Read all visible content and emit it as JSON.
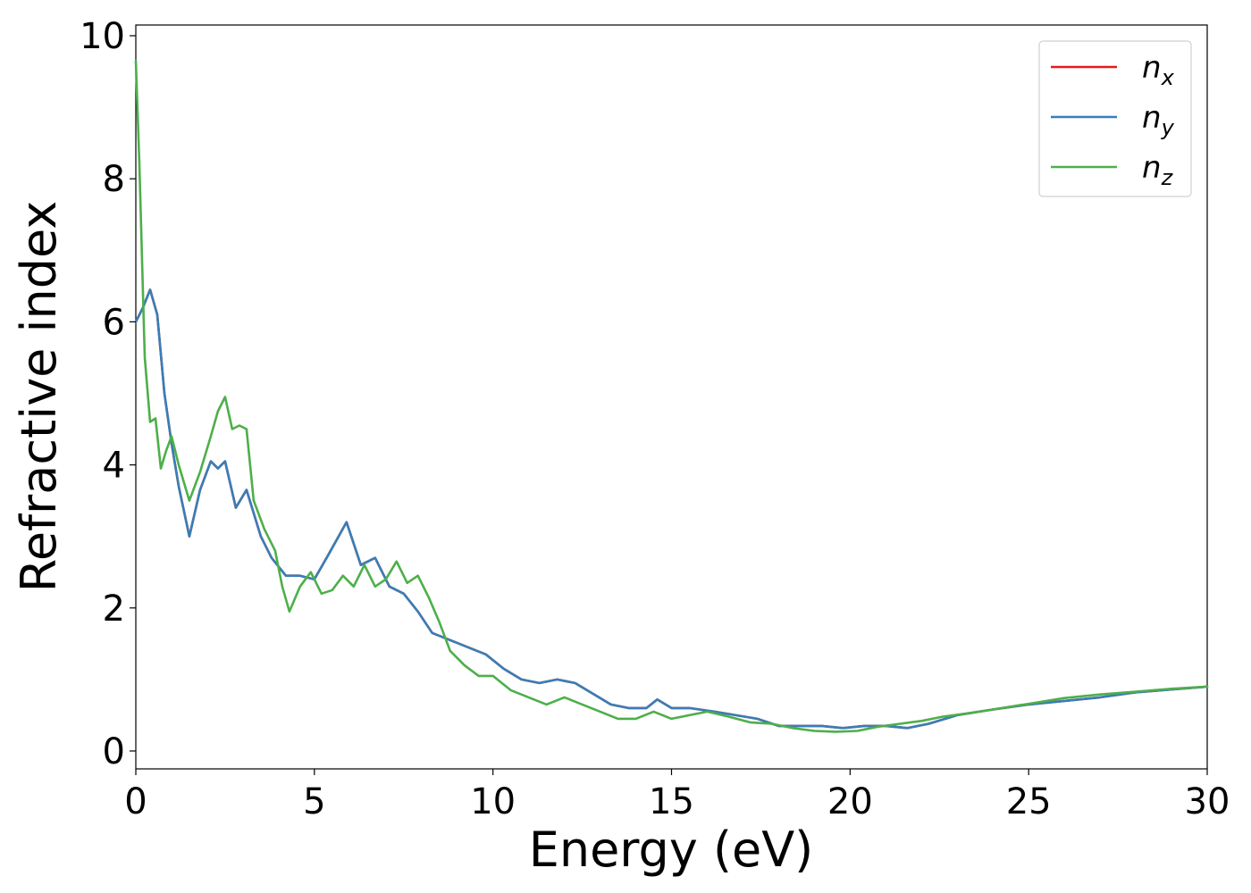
{
  "chart_data": {
    "type": "line",
    "xlabel": "Energy (eV)",
    "ylabel": "Refractive index",
    "xlim": [
      0,
      30
    ],
    "ylim": [
      -0.25,
      10.15
    ],
    "xticks": [
      "0",
      "5",
      "10",
      "15",
      "20",
      "25",
      "30"
    ],
    "yticks": [
      "0",
      "2",
      "4",
      "6",
      "8",
      "10"
    ],
    "grid": false,
    "legend_position": "top-right",
    "series": [
      {
        "name": "n",
        "subscript": "x",
        "color": "#e41a1c",
        "x": [
          0,
          0.2,
          0.4,
          0.6,
          0.8,
          1.0,
          1.2,
          1.5,
          1.8,
          2.1,
          2.3,
          2.5,
          2.8,
          3.1,
          3.5,
          3.8,
          4.2,
          4.6,
          5.0,
          5.4,
          5.9,
          6.3,
          6.7,
          7.1,
          7.5,
          7.9,
          8.3,
          8.8,
          9.3,
          9.8,
          10.3,
          10.8,
          11.3,
          11.8,
          12.3,
          12.8,
          13.3,
          13.8,
          14.3,
          14.6,
          15.0,
          15.5,
          16.2,
          16.8,
          17.4,
          18.0,
          18.6,
          19.2,
          19.8,
          20.4,
          21.0,
          21.6,
          22.2,
          23.0,
          24.0,
          25.0,
          26.0,
          27.0,
          28.0,
          29.0,
          30.0
        ],
        "y": [
          6.0,
          6.2,
          6.45,
          6.1,
          5.0,
          4.3,
          3.7,
          3.0,
          3.65,
          4.05,
          3.95,
          4.05,
          3.4,
          3.65,
          3.0,
          2.7,
          2.45,
          2.45,
          2.4,
          2.75,
          3.2,
          2.6,
          2.7,
          2.3,
          2.2,
          1.95,
          1.65,
          1.55,
          1.45,
          1.35,
          1.15,
          1.0,
          0.95,
          1.0,
          0.95,
          0.8,
          0.65,
          0.6,
          0.6,
          0.72,
          0.6,
          0.6,
          0.55,
          0.5,
          0.45,
          0.35,
          0.35,
          0.35,
          0.32,
          0.35,
          0.35,
          0.32,
          0.38,
          0.5,
          0.58,
          0.65,
          0.7,
          0.75,
          0.82,
          0.86,
          0.9
        ]
      },
      {
        "name": "n",
        "subscript": "y",
        "color": "#377eb8",
        "x": [
          0,
          0.2,
          0.4,
          0.6,
          0.8,
          1.0,
          1.2,
          1.5,
          1.8,
          2.1,
          2.3,
          2.5,
          2.8,
          3.1,
          3.5,
          3.8,
          4.2,
          4.6,
          5.0,
          5.4,
          5.9,
          6.3,
          6.7,
          7.1,
          7.5,
          7.9,
          8.3,
          8.8,
          9.3,
          9.8,
          10.3,
          10.8,
          11.3,
          11.8,
          12.3,
          12.8,
          13.3,
          13.8,
          14.3,
          14.6,
          15.0,
          15.5,
          16.2,
          16.8,
          17.4,
          18.0,
          18.6,
          19.2,
          19.8,
          20.4,
          21.0,
          21.6,
          22.2,
          23.0,
          24.0,
          25.0,
          26.0,
          27.0,
          28.0,
          29.0,
          30.0
        ],
        "y": [
          6.0,
          6.2,
          6.45,
          6.1,
          5.0,
          4.3,
          3.7,
          3.0,
          3.65,
          4.05,
          3.95,
          4.05,
          3.4,
          3.65,
          3.0,
          2.7,
          2.45,
          2.45,
          2.4,
          2.75,
          3.2,
          2.6,
          2.7,
          2.3,
          2.2,
          1.95,
          1.65,
          1.55,
          1.45,
          1.35,
          1.15,
          1.0,
          0.95,
          1.0,
          0.95,
          0.8,
          0.65,
          0.6,
          0.6,
          0.72,
          0.6,
          0.6,
          0.55,
          0.5,
          0.45,
          0.35,
          0.35,
          0.35,
          0.32,
          0.35,
          0.35,
          0.32,
          0.38,
          0.5,
          0.58,
          0.65,
          0.7,
          0.75,
          0.82,
          0.86,
          0.9
        ]
      },
      {
        "name": "n",
        "subscript": "z",
        "color": "#4daf4a",
        "x": [
          0,
          0.1,
          0.25,
          0.4,
          0.55,
          0.7,
          0.85,
          1.0,
          1.2,
          1.5,
          1.8,
          2.1,
          2.3,
          2.5,
          2.7,
          2.9,
          3.1,
          3.3,
          3.6,
          3.9,
          4.1,
          4.3,
          4.6,
          4.9,
          5.2,
          5.5,
          5.8,
          6.1,
          6.4,
          6.7,
          7.0,
          7.3,
          7.6,
          7.9,
          8.2,
          8.5,
          8.8,
          9.2,
          9.6,
          10.0,
          10.5,
          11.0,
          11.5,
          12.0,
          12.5,
          13.0,
          13.5,
          14.0,
          14.5,
          15.0,
          15.5,
          16.0,
          16.6,
          17.2,
          17.8,
          18.4,
          19.0,
          19.6,
          20.2,
          20.8,
          21.4,
          22.0,
          22.6,
          23.2,
          24.0,
          25.0,
          26.0,
          27.0,
          28.0,
          29.0,
          30.0
        ],
        "y": [
          9.65,
          8.2,
          5.5,
          4.6,
          4.65,
          3.95,
          4.2,
          4.4,
          4.0,
          3.5,
          3.9,
          4.4,
          4.75,
          4.95,
          4.5,
          4.55,
          4.5,
          3.5,
          3.1,
          2.8,
          2.3,
          1.95,
          2.3,
          2.5,
          2.2,
          2.25,
          2.45,
          2.3,
          2.6,
          2.3,
          2.4,
          2.65,
          2.35,
          2.45,
          2.15,
          1.8,
          1.4,
          1.2,
          1.05,
          1.05,
          0.85,
          0.75,
          0.65,
          0.75,
          0.65,
          0.55,
          0.45,
          0.45,
          0.55,
          0.45,
          0.5,
          0.55,
          0.48,
          0.4,
          0.38,
          0.32,
          0.28,
          0.27,
          0.28,
          0.34,
          0.38,
          0.42,
          0.48,
          0.52,
          0.58,
          0.66,
          0.74,
          0.79,
          0.83,
          0.87,
          0.9
        ]
      }
    ]
  }
}
